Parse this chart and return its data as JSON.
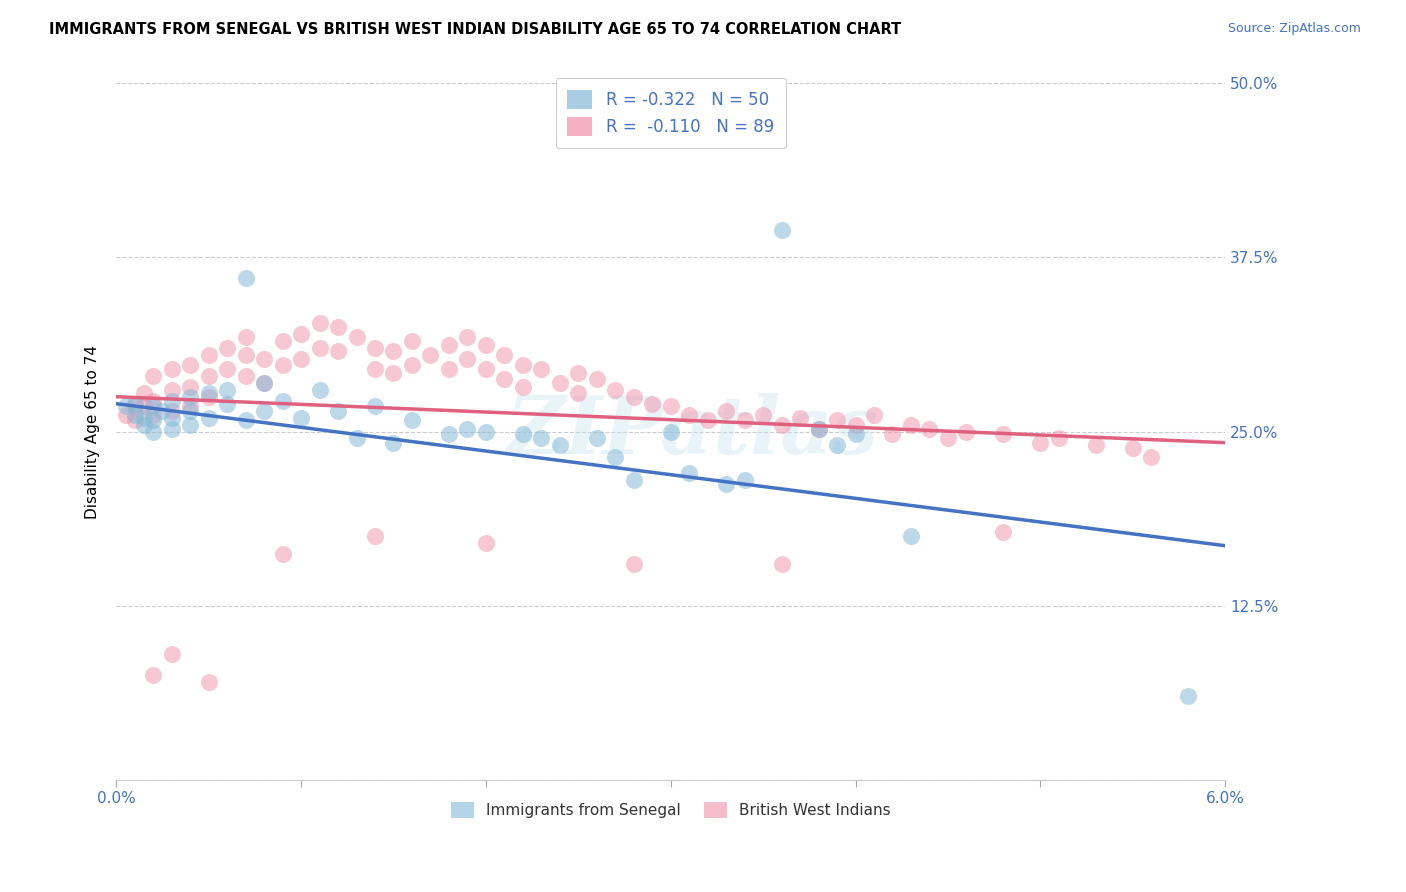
{
  "title": "IMMIGRANTS FROM SENEGAL VS BRITISH WEST INDIAN DISABILITY AGE 65 TO 74 CORRELATION CHART",
  "source": "Source: ZipAtlas.com",
  "ylabel": "Disability Age 65 to 74",
  "xlim": [
    0.0,
    0.06
  ],
  "ylim": [
    0.0,
    0.5
  ],
  "xticks": [
    0.0,
    0.01,
    0.02,
    0.03,
    0.04,
    0.05,
    0.06
  ],
  "xticklabels_show": [
    "0.0%",
    "",
    "",
    "",
    "",
    "",
    "6.0%"
  ],
  "yticks": [
    0.0,
    0.125,
    0.25,
    0.375,
    0.5
  ],
  "yticklabels_right": [
    "",
    "12.5%",
    "25.0%",
    "37.5%",
    "50.0%"
  ],
  "series1_label": "Immigrants from Senegal",
  "series2_label": "British West Indians",
  "series1_color": "#85b8d8",
  "series2_color": "#f090a8",
  "trendline1_color": "#4472c4",
  "trendline2_color": "#e06080",
  "watermark": "ZIPatlas",
  "R1": -0.322,
  "N1": 50,
  "R2": -0.11,
  "N2": 89,
  "legend1_label": "R = -0.322   N = 50",
  "legend2_label": "R =  -0.110   N = 89",
  "series1_x": [
    0.0005,
    0.001,
    0.001,
    0.0015,
    0.0015,
    0.002,
    0.002,
    0.002,
    0.0025,
    0.003,
    0.003,
    0.003,
    0.004,
    0.004,
    0.004,
    0.005,
    0.005,
    0.006,
    0.006,
    0.007,
    0.007,
    0.008,
    0.008,
    0.009,
    0.01,
    0.011,
    0.012,
    0.013,
    0.014,
    0.015,
    0.016,
    0.018,
    0.019,
    0.02,
    0.022,
    0.023,
    0.024,
    0.026,
    0.027,
    0.028,
    0.03,
    0.031,
    0.033,
    0.034,
    0.036,
    0.038,
    0.039,
    0.04,
    0.043,
    0.058
  ],
  "series1_y": [
    0.268,
    0.27,
    0.262,
    0.255,
    0.26,
    0.268,
    0.258,
    0.25,
    0.265,
    0.272,
    0.26,
    0.252,
    0.275,
    0.265,
    0.255,
    0.278,
    0.26,
    0.28,
    0.27,
    0.36,
    0.258,
    0.285,
    0.265,
    0.272,
    0.26,
    0.28,
    0.265,
    0.245,
    0.268,
    0.242,
    0.258,
    0.248,
    0.252,
    0.25,
    0.248,
    0.245,
    0.24,
    0.245,
    0.232,
    0.215,
    0.25,
    0.22,
    0.212,
    0.215,
    0.395,
    0.252,
    0.24,
    0.248,
    0.175,
    0.06
  ],
  "series2_x": [
    0.0005,
    0.001,
    0.001,
    0.0015,
    0.0015,
    0.002,
    0.002,
    0.002,
    0.003,
    0.003,
    0.003,
    0.004,
    0.004,
    0.004,
    0.005,
    0.005,
    0.005,
    0.006,
    0.006,
    0.007,
    0.007,
    0.007,
    0.008,
    0.008,
    0.009,
    0.009,
    0.01,
    0.01,
    0.011,
    0.011,
    0.012,
    0.012,
    0.013,
    0.014,
    0.014,
    0.015,
    0.015,
    0.016,
    0.016,
    0.017,
    0.018,
    0.018,
    0.019,
    0.019,
    0.02,
    0.02,
    0.021,
    0.021,
    0.022,
    0.022,
    0.023,
    0.024,
    0.025,
    0.025,
    0.026,
    0.027,
    0.028,
    0.029,
    0.03,
    0.031,
    0.032,
    0.033,
    0.034,
    0.035,
    0.036,
    0.037,
    0.038,
    0.039,
    0.04,
    0.041,
    0.042,
    0.043,
    0.044,
    0.045,
    0.046,
    0.048,
    0.05,
    0.051,
    0.053,
    0.055,
    0.056,
    0.002,
    0.003,
    0.005,
    0.009,
    0.014,
    0.02,
    0.028,
    0.036,
    0.048
  ],
  "series2_y": [
    0.262,
    0.268,
    0.258,
    0.278,
    0.268,
    0.29,
    0.272,
    0.262,
    0.295,
    0.28,
    0.265,
    0.298,
    0.282,
    0.268,
    0.305,
    0.29,
    0.275,
    0.31,
    0.295,
    0.318,
    0.305,
    0.29,
    0.302,
    0.285,
    0.315,
    0.298,
    0.32,
    0.302,
    0.328,
    0.31,
    0.325,
    0.308,
    0.318,
    0.31,
    0.295,
    0.308,
    0.292,
    0.315,
    0.298,
    0.305,
    0.312,
    0.295,
    0.318,
    0.302,
    0.312,
    0.295,
    0.305,
    0.288,
    0.298,
    0.282,
    0.295,
    0.285,
    0.292,
    0.278,
    0.288,
    0.28,
    0.275,
    0.27,
    0.268,
    0.262,
    0.258,
    0.265,
    0.258,
    0.262,
    0.255,
    0.26,
    0.252,
    0.258,
    0.255,
    0.262,
    0.248,
    0.255,
    0.252,
    0.245,
    0.25,
    0.248,
    0.242,
    0.245,
    0.24,
    0.238,
    0.232,
    0.075,
    0.09,
    0.07,
    0.162,
    0.175,
    0.17,
    0.155,
    0.155,
    0.178
  ]
}
